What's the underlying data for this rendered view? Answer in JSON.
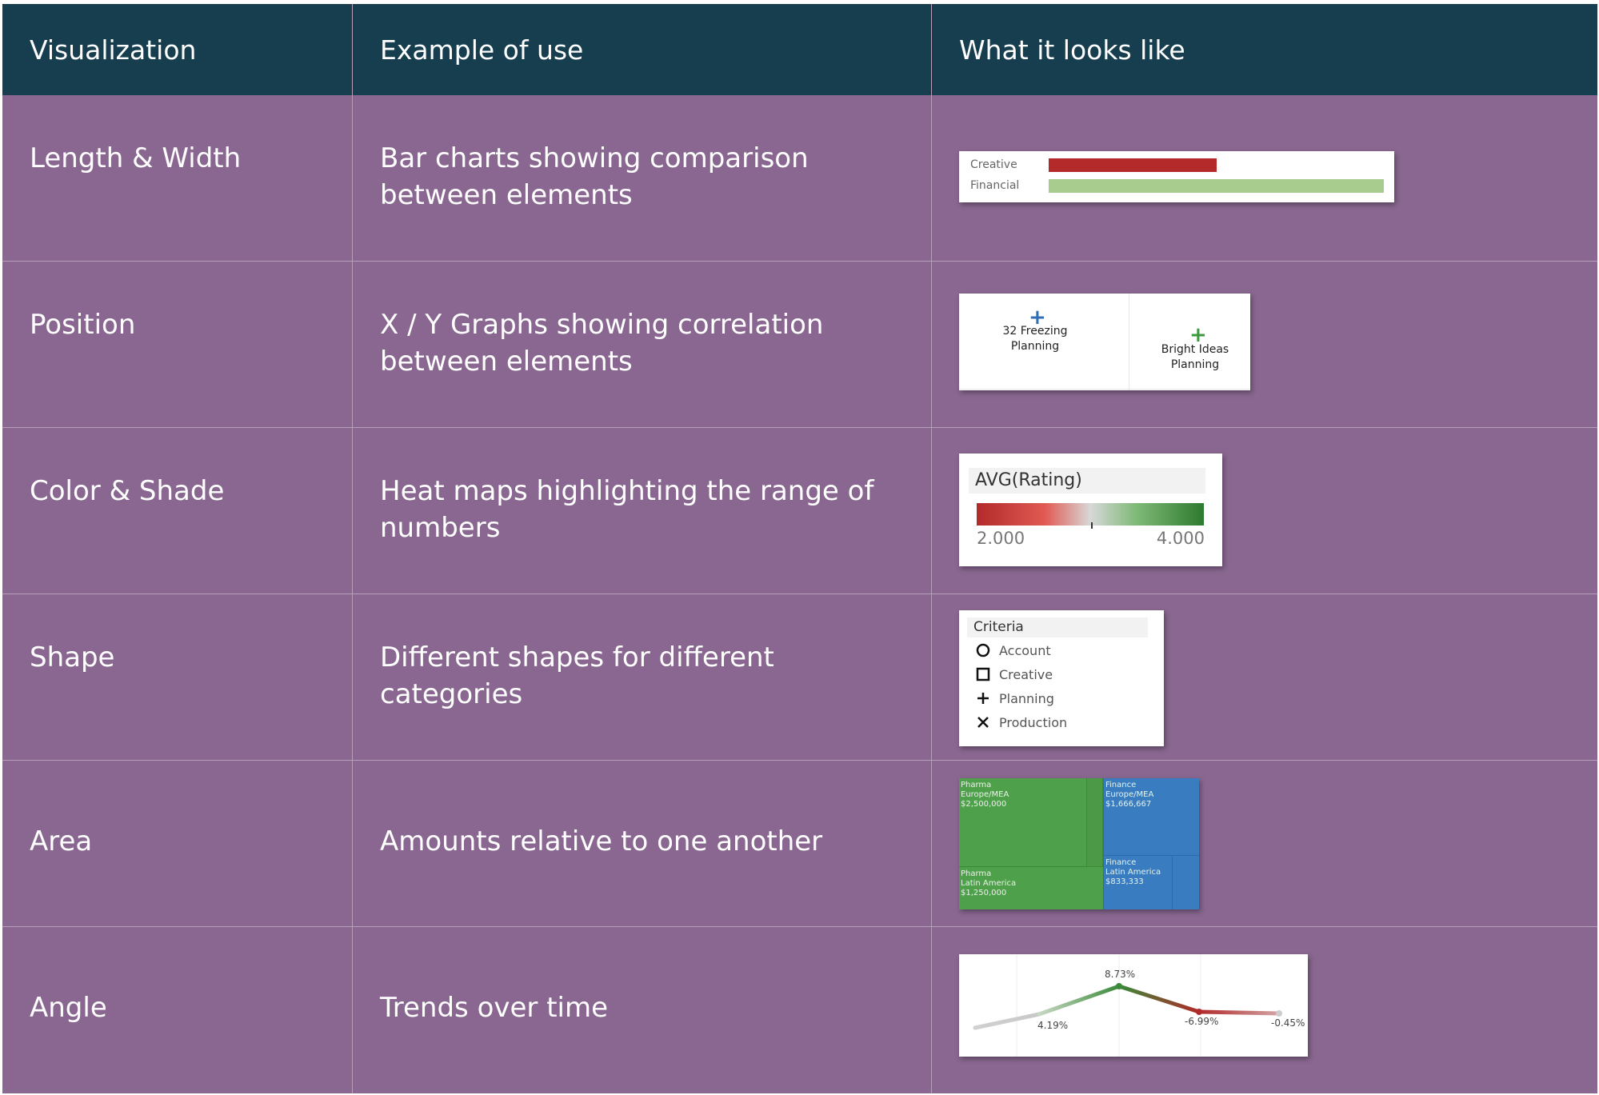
{
  "headers": [
    "Visualization",
    "Example of use",
    "What it looks like"
  ],
  "rows": [
    {
      "name": "Length & Width",
      "example": "Bar charts showing comparison between elements"
    },
    {
      "name": "Position",
      "example": "X / Y Graphs  showing correlation between elements"
    },
    {
      "name": "Color & Shade",
      "example": "Heat maps highlighting the range of numbers"
    },
    {
      "name": "Shape",
      "example": "Different shapes for different categories"
    },
    {
      "name": "Area",
      "example": "Amounts relative to one another"
    },
    {
      "name": "Angle",
      "example": "Trends over time"
    }
  ],
  "colors": {
    "header_bg": "#173e4f",
    "body_bg": "#896790",
    "bar_red": "#b42a2a",
    "bar_green": "#a8cc8e",
    "treemap_green": "#4fa04b",
    "treemap_blue": "#3a7cc0"
  },
  "samples": {
    "length_width": {
      "bars": [
        {
          "label": "Creative",
          "value": 0.5,
          "color": "#b42a2a"
        },
        {
          "label": "Financial",
          "value": 1.0,
          "color": "#a8cc8e"
        }
      ]
    },
    "position": {
      "points": [
        {
          "label_line1": "32 Freezing",
          "label_line2": "Planning",
          "marker_color": "#2f6fb5"
        },
        {
          "label_line1": "Bright Ideas",
          "label_line2": "Planning",
          "marker_color": "#3c9a3c"
        }
      ],
      "marker_icon": "plus-icon"
    },
    "color_shade": {
      "title": "AVG(Rating)",
      "min": "2.000",
      "max": "4.000"
    },
    "shape": {
      "title": "Criteria",
      "items": [
        {
          "label": "Account",
          "icon": "circle-icon"
        },
        {
          "label": "Creative",
          "icon": "square-icon"
        },
        {
          "label": "Planning",
          "icon": "plus-icon"
        },
        {
          "label": "Production",
          "icon": "x-icon"
        }
      ]
    },
    "area": {
      "blocks": [
        {
          "l1": "Pharma",
          "l2": "Europe/MEA",
          "l3": "$2,500,000"
        },
        {
          "l1": "Pharma",
          "l2": "Latin America",
          "l3": "$1,250,000"
        },
        {
          "l1": "Finance",
          "l2": "Europe/MEA",
          "l3": "$1,666,667"
        },
        {
          "l1": "Finance",
          "l2": "Latin America",
          "l3": "$833,333"
        }
      ]
    },
    "angle": {
      "labels": [
        "4.19%",
        "8.73%",
        "-6.99%",
        "-0.45%"
      ]
    }
  }
}
